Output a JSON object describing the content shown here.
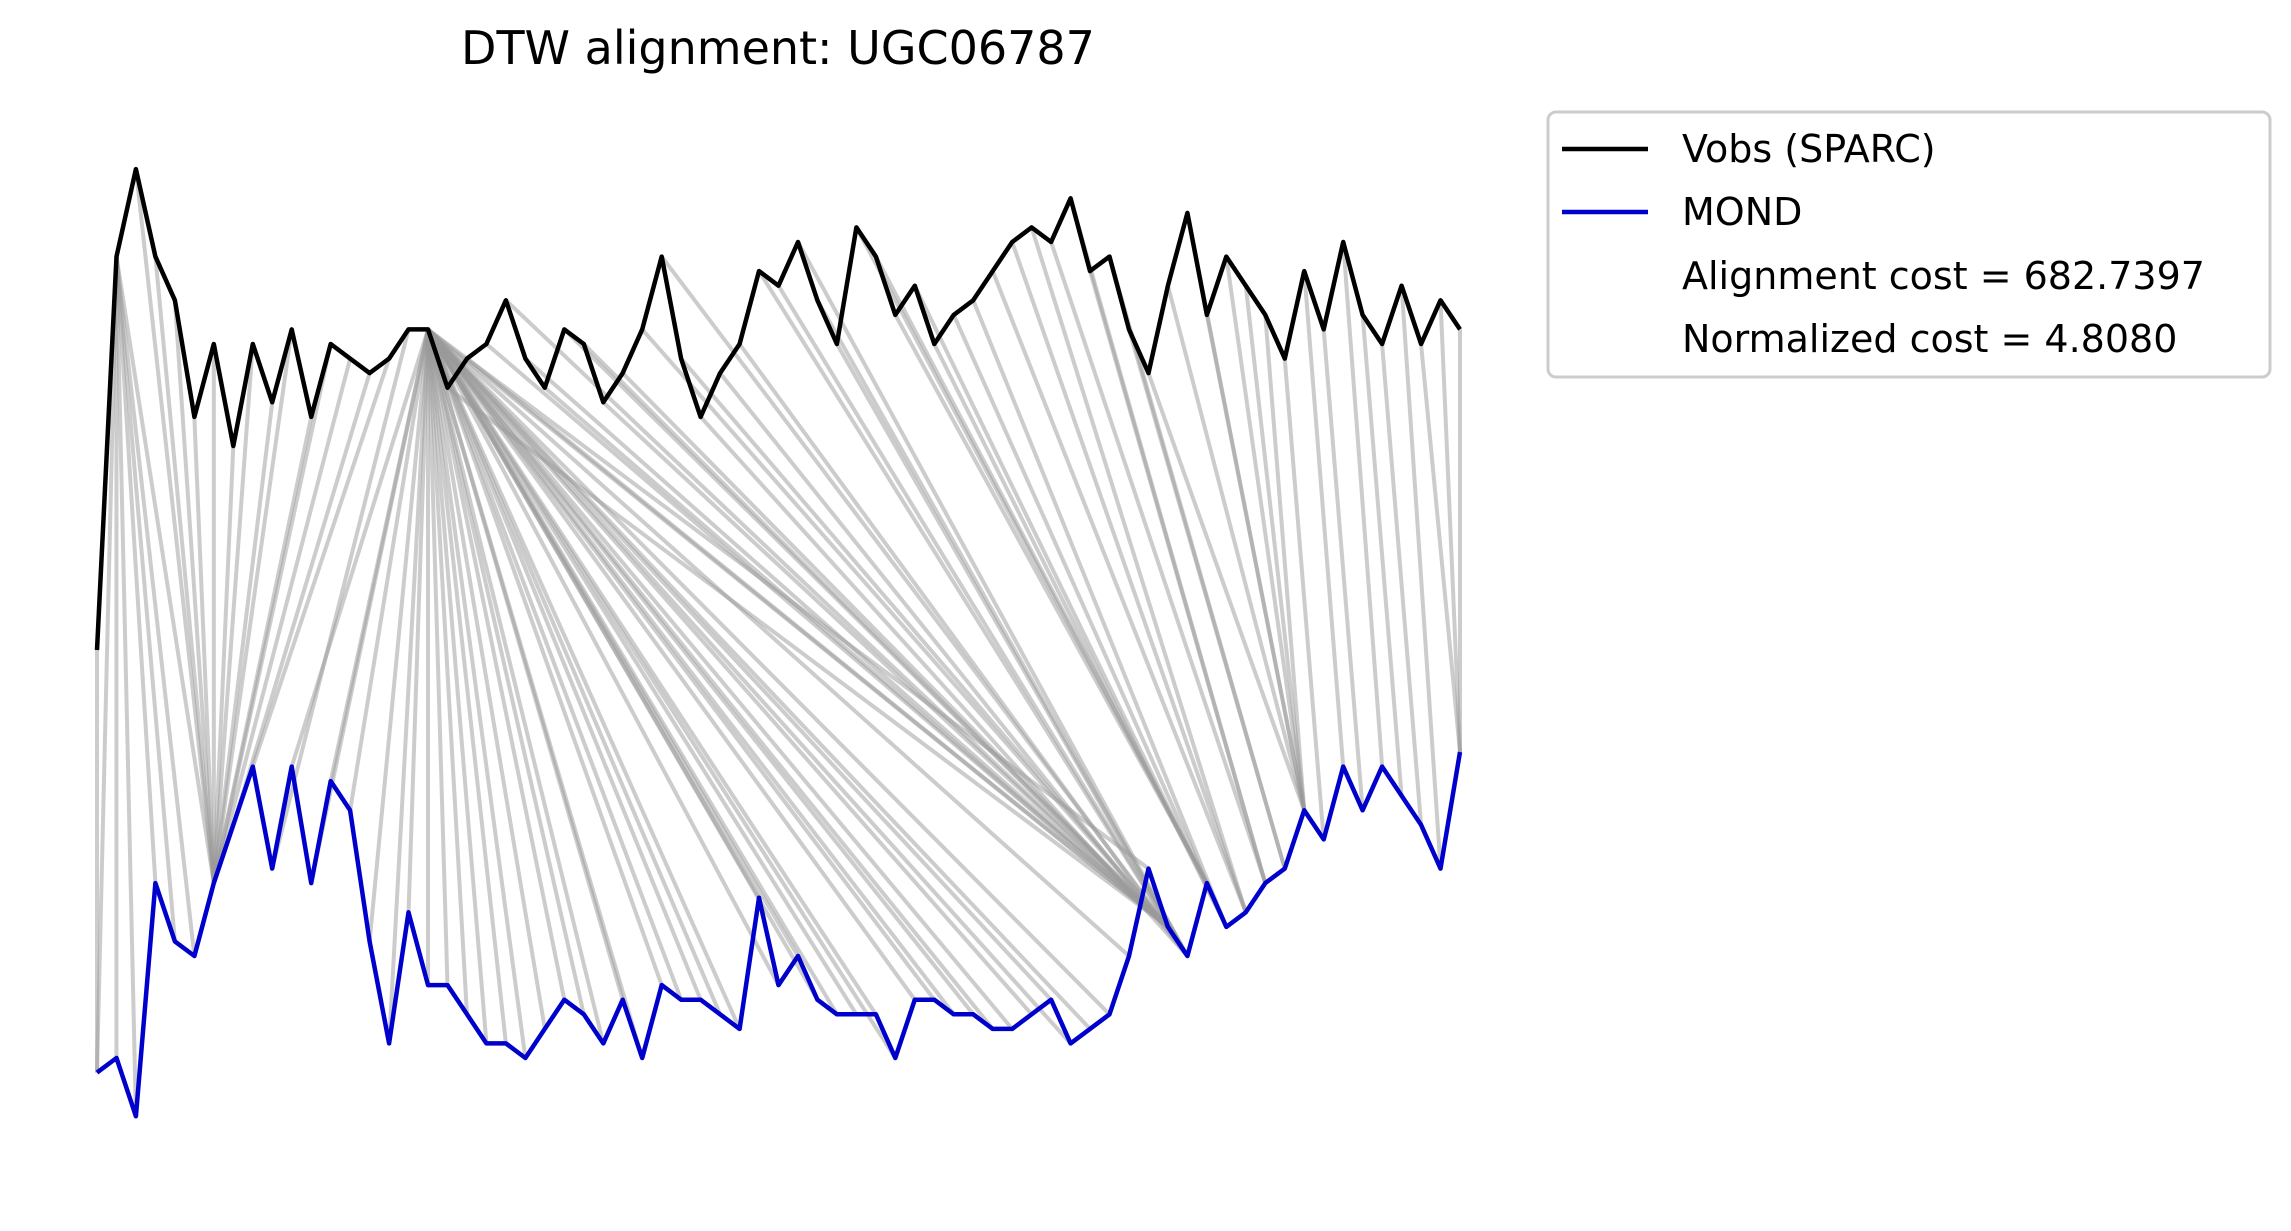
{
  "chart_data": {
    "type": "line",
    "title": "DTW alignment: UGC06787",
    "xlabel": "",
    "ylabel": "",
    "grid": false,
    "axes_visible": false,
    "legend_placement": "outside-top-right",
    "series": [
      {
        "name": "Vobs (SPARC)",
        "color": "#000000",
        "values": [
          35,
          62,
          68,
          62,
          59,
          51,
          56,
          49,
          56,
          52,
          57,
          51,
          56,
          55,
          54,
          55,
          57,
          57,
          53,
          55,
          56,
          59,
          55,
          53,
          57,
          56,
          52,
          54,
          57,
          62,
          55,
          51,
          54,
          56,
          61,
          60,
          63,
          59,
          56,
          64,
          62,
          58,
          60,
          56,
          58,
          59,
          61,
          63,
          64,
          63,
          66,
          61,
          62,
          57,
          54,
          60,
          65,
          58,
          62,
          60,
          58,
          55,
          61,
          57,
          63,
          58,
          56,
          60,
          56,
          59,
          57
        ]
      },
      {
        "name": "MOND",
        "color": "#0000cc",
        "values": [
          6,
          7,
          3,
          19,
          15,
          14,
          19,
          23,
          27,
          20,
          27,
          19,
          26,
          24,
          15,
          8,
          17,
          12,
          12,
          10,
          8,
          8,
          7,
          9,
          11,
          10,
          8,
          11,
          7,
          12,
          11,
          11,
          10,
          9,
          18,
          12,
          14,
          11,
          10,
          10,
          10,
          7,
          11,
          11,
          10,
          10,
          9,
          9,
          10,
          11,
          8,
          9,
          10,
          14,
          20,
          16,
          14,
          19,
          16,
          17,
          19,
          20,
          24,
          22,
          27,
          24,
          27,
          25,
          23,
          20,
          28
        ]
      }
    ],
    "alignment": {
      "color": "#999999",
      "pairs": [
        [
          0,
          0
        ],
        [
          1,
          0
        ],
        [
          1,
          1
        ],
        [
          1,
          2
        ],
        [
          1,
          3
        ],
        [
          1,
          4
        ],
        [
          1,
          5
        ],
        [
          1,
          6
        ],
        [
          2,
          6
        ],
        [
          3,
          6
        ],
        [
          4,
          6
        ],
        [
          5,
          6
        ],
        [
          6,
          6
        ],
        [
          7,
          6
        ],
        [
          8,
          6
        ],
        [
          9,
          6
        ],
        [
          10,
          6
        ],
        [
          11,
          6
        ],
        [
          12,
          6
        ],
        [
          13,
          6
        ],
        [
          14,
          7
        ],
        [
          15,
          8
        ],
        [
          16,
          9
        ],
        [
          17,
          10
        ],
        [
          17,
          11
        ],
        [
          17,
          12
        ],
        [
          17,
          13
        ],
        [
          17,
          14
        ],
        [
          17,
          15
        ],
        [
          17,
          16
        ],
        [
          17,
          17
        ],
        [
          17,
          18
        ],
        [
          17,
          19
        ],
        [
          17,
          20
        ],
        [
          17,
          21
        ],
        [
          17,
          22
        ],
        [
          17,
          23
        ],
        [
          17,
          24
        ],
        [
          17,
          25
        ],
        [
          17,
          26
        ],
        [
          17,
          27
        ],
        [
          17,
          28
        ],
        [
          17,
          29
        ],
        [
          17,
          30
        ],
        [
          17,
          31
        ],
        [
          17,
          32
        ],
        [
          17,
          33
        ],
        [
          17,
          34
        ],
        [
          17,
          35
        ],
        [
          17,
          36
        ],
        [
          17,
          37
        ],
        [
          17,
          38
        ],
        [
          17,
          39
        ],
        [
          17,
          40
        ],
        [
          17,
          41
        ],
        [
          17,
          42
        ],
        [
          17,
          43
        ],
        [
          17,
          44
        ],
        [
          17,
          45
        ],
        [
          17,
          46
        ],
        [
          17,
          47
        ],
        [
          17,
          48
        ],
        [
          17,
          49
        ],
        [
          17,
          50
        ],
        [
          17,
          51
        ],
        [
          17,
          52
        ],
        [
          17,
          53
        ],
        [
          17,
          54
        ],
        [
          17,
          55
        ],
        [
          18,
          55
        ],
        [
          19,
          55
        ],
        [
          20,
          55
        ],
        [
          21,
          55
        ],
        [
          22,
          55
        ],
        [
          23,
          55
        ],
        [
          24,
          55
        ],
        [
          25,
          55
        ],
        [
          26,
          55
        ],
        [
          27,
          55
        ],
        [
          28,
          55
        ],
        [
          29,
          55
        ],
        [
          30,
          55
        ],
        [
          31,
          56
        ],
        [
          32,
          56
        ],
        [
          33,
          56
        ],
        [
          34,
          56
        ],
        [
          35,
          56
        ],
        [
          36,
          56
        ],
        [
          37,
          56
        ],
        [
          38,
          56
        ],
        [
          39,
          57
        ],
        [
          40,
          57
        ],
        [
          41,
          57
        ],
        [
          42,
          58
        ],
        [
          43,
          58
        ],
        [
          44,
          58
        ],
        [
          45,
          58
        ],
        [
          46,
          59
        ],
        [
          47,
          59
        ],
        [
          48,
          59
        ],
        [
          49,
          60
        ],
        [
          50,
          60
        ],
        [
          51,
          60
        ],
        [
          52,
          61
        ],
        [
          53,
          61
        ],
        [
          54,
          62
        ],
        [
          55,
          62
        ],
        [
          56,
          62
        ],
        [
          57,
          62
        ],
        [
          58,
          62
        ],
        [
          59,
          62
        ],
        [
          60,
          62
        ],
        [
          61,
          63
        ],
        [
          62,
          64
        ],
        [
          63,
          65
        ],
        [
          64,
          66
        ],
        [
          65,
          67
        ],
        [
          66,
          68
        ],
        [
          67,
          69
        ],
        [
          68,
          70
        ],
        [
          69,
          70
        ],
        [
          70,
          70
        ]
      ]
    }
  },
  "legend": {
    "items": [
      {
        "label": "Vobs (SPARC)",
        "color": "#000000"
      },
      {
        "label": "MOND",
        "color": "#0000cc"
      }
    ],
    "cost_text": "Alignment cost = 682.7397",
    "normalized_text": "Normalized cost = 4.8080"
  }
}
